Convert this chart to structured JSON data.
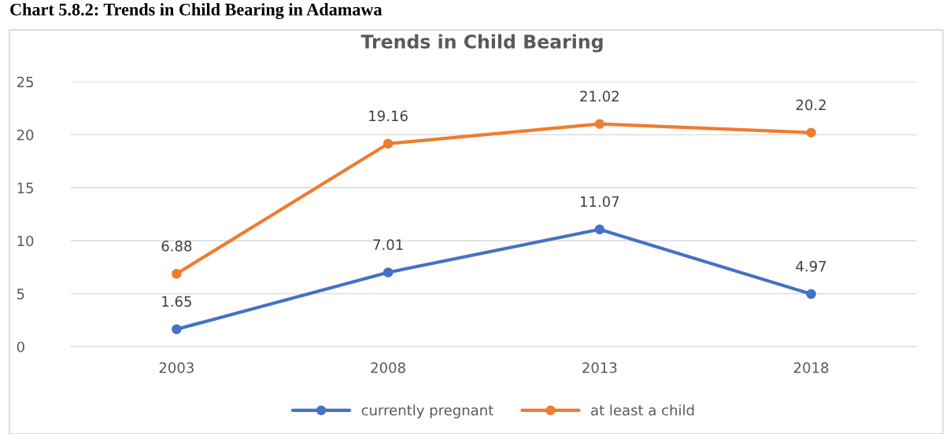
{
  "chart_data": {
    "type": "line",
    "title": "Trends in Child Bearing",
    "annotations": [
      "Chart 5.8.2: Trends in Child Bearing in Adamawa"
    ],
    "categories": [
      "2003",
      "2008",
      "2013",
      "2018"
    ],
    "series": [
      {
        "name": "currently pregnant",
        "color": "#4472c4",
        "values": [
          1.65,
          7.01,
          11.07,
          4.97
        ]
      },
      {
        "name": "at least a child",
        "color": "#ed7d31",
        "values": [
          6.88,
          19.16,
          21.02,
          20.2
        ]
      }
    ],
    "ylim": [
      0,
      25
    ],
    "yticks": [
      0,
      5,
      10,
      15,
      20,
      25
    ],
    "grid": "y",
    "legend": "bottom",
    "marker": "circle",
    "line_style": "solid",
    "data_labels": true
  }
}
